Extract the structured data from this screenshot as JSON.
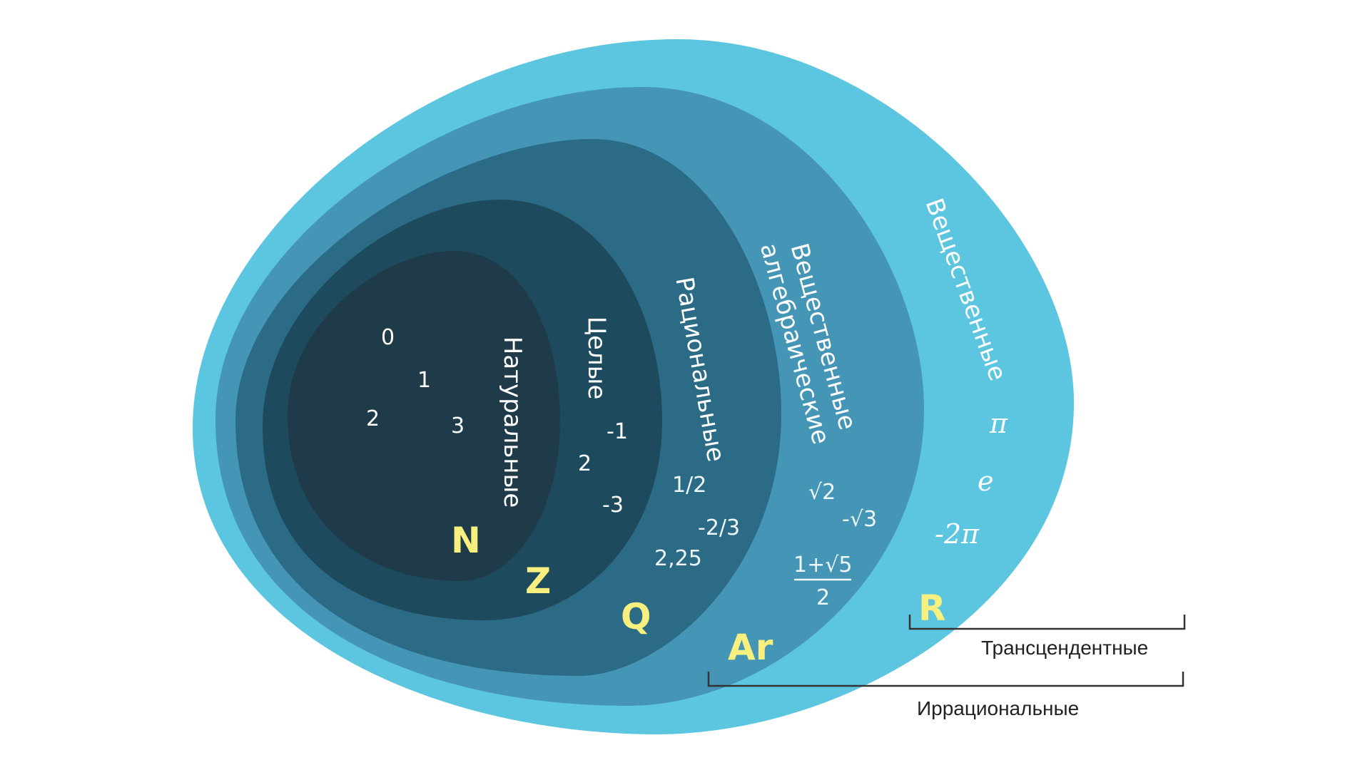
{
  "sets": {
    "real": {
      "name": "Вещественные",
      "letter": "R",
      "color": "#5cc5df"
    },
    "algebraic": {
      "name_line1": "Вещественные",
      "name_line2": "алгебраические",
      "letter": "Ar",
      "color": "#4596b6"
    },
    "rational": {
      "name": "Рациональные",
      "letter": "Q",
      "color": "#2c6b86"
    },
    "integer": {
      "name": "Целые",
      "letter": "Z",
      "color": "#1e4a5d"
    },
    "natural": {
      "name": "Натуральные",
      "letter": "N",
      "color": "#1f3b49"
    }
  },
  "examples": {
    "natural": [
      "0",
      "1",
      "2",
      "3"
    ],
    "integer": [
      "-1",
      "2",
      "-3"
    ],
    "rational": [
      "1/2",
      "-2/3",
      "2,25"
    ],
    "algebraic": {
      "sqrt2": "√2",
      "neg_sqrt3": "-√3",
      "golden_numerator": "1+√5",
      "golden_denominator": "2"
    },
    "transcendental": [
      "π",
      "e",
      "-2π"
    ]
  },
  "brackets": {
    "transcendental": "Трансцендентные",
    "irrational": "Иррациональные"
  },
  "accent_color": "#f7f07e"
}
